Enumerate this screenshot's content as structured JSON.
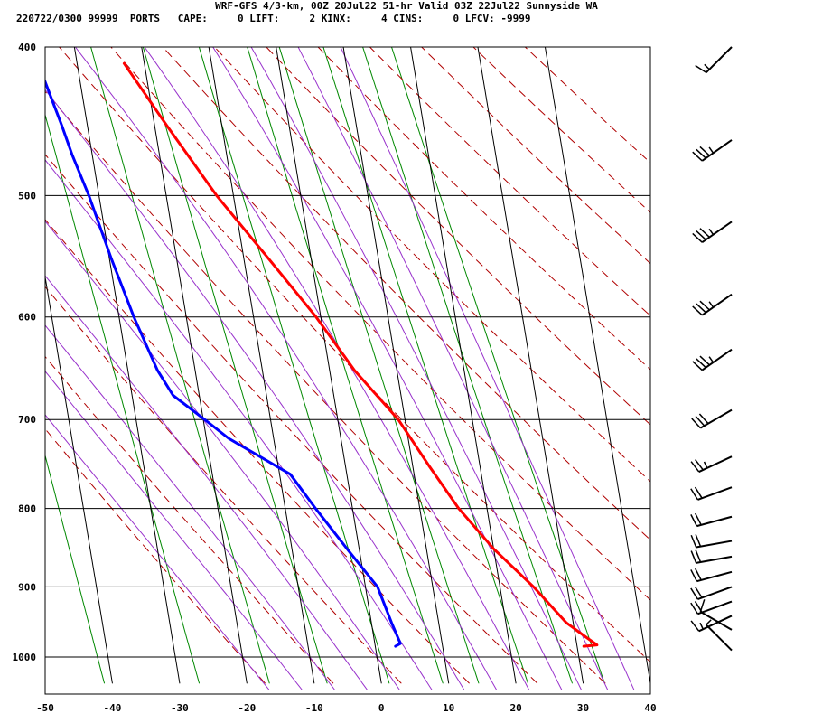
{
  "header": {
    "title": "WRF-GFS 4/3-km, 00Z 20Jul22 51-hr Valid 03Z 22Jul22 Sunnyside WA",
    "info": "220722/0300 99999  PORTS   CAPE:     0 LIFT:     2 KINX:     4 CINS:     0 LFCV: -9999"
  },
  "chart_data": {
    "type": "line",
    "subtype": "skew-T log-P sounding",
    "x_label": "",
    "y_label": "",
    "xlim": [
      -50,
      40
    ],
    "ylim": [
      1040,
      400
    ],
    "y_scale": "log",
    "x_ticks": [
      -50,
      -40,
      -30,
      -20,
      -10,
      0,
      10,
      20,
      30,
      40
    ],
    "x_tick_labels": [
      "-50",
      "-40",
      "-30",
      "-20",
      "-10",
      "0",
      "10",
      "20",
      "30",
      "40"
    ],
    "y_ticks": [
      400,
      500,
      600,
      700,
      800,
      900,
      1000
    ],
    "y_tick_labels": [
      "400",
      "500",
      "600",
      "700",
      "800",
      "900",
      "1000"
    ],
    "grid": true,
    "colors": {
      "temperature": "#ff0000",
      "dewpoint": "#0000ff",
      "dry_adiabat": "#b00000",
      "moist_adiabat": "#9933cc",
      "mixing_ratio": "#008800",
      "grid": "#000000"
    },
    "series": [
      {
        "id": "temperature",
        "points": [
          {
            "p": 984,
            "t": 31.0
          },
          {
            "p": 982,
            "t": 33.0
          },
          {
            "p": 970,
            "t": 31.5
          },
          {
            "p": 950,
            "t": 29.0
          },
          {
            "p": 900,
            "t": 25.0
          },
          {
            "p": 850,
            "t": 20.0
          },
          {
            "p": 800,
            "t": 15.8
          },
          {
            "p": 750,
            "t": 12.4
          },
          {
            "p": 700,
            "t": 9.0
          },
          {
            "p": 650,
            "t": 3.7
          },
          {
            "p": 600,
            "t": -0.7
          },
          {
            "p": 550,
            "t": -6.3
          },
          {
            "p": 500,
            "t": -12.5
          },
          {
            "p": 450,
            "t": -18.2
          },
          {
            "p": 410,
            "t": -23.0
          }
        ]
      },
      {
        "id": "dewpoint",
        "points": [
          {
            "p": 984,
            "t": 3.0
          },
          {
            "p": 980,
            "t": 3.8
          },
          {
            "p": 950,
            "t": 3.0
          },
          {
            "p": 900,
            "t": 1.8
          },
          {
            "p": 850,
            "t": -1.8
          },
          {
            "p": 800,
            "t": -5.5
          },
          {
            "p": 760,
            "t": -8.4
          },
          {
            "p": 720,
            "t": -16.7
          },
          {
            "p": 700,
            "t": -19.8
          },
          {
            "p": 675,
            "t": -23.9
          },
          {
            "p": 650,
            "t": -25.6
          },
          {
            "p": 600,
            "t": -27.8
          },
          {
            "p": 550,
            "t": -29.7
          },
          {
            "p": 500,
            "t": -31.5
          },
          {
            "p": 470,
            "t": -33.0
          },
          {
            "p": 450,
            "t": -33.8
          },
          {
            "p": 410,
            "t": -35.8
          }
        ]
      }
    ],
    "dry_adiabats_theta_K": [
      253,
      263,
      273,
      283,
      293,
      303,
      313,
      323,
      333,
      343,
      353,
      363,
      373,
      383,
      393,
      403
    ],
    "moist_adiabats_thetaw_C": [
      -20,
      -15,
      -10,
      -5,
      0,
      5,
      10,
      15,
      20,
      25,
      28,
      32,
      36
    ],
    "mixing_ratio_lines_gkg": [
      0.1,
      0.4,
      1,
      2,
      4,
      7,
      10,
      16,
      24,
      32
    ],
    "wind_barbs": [
      {
        "p": 400,
        "dir_deg": 225,
        "speed_kt": 15
      },
      {
        "p": 460,
        "dir_deg": 235,
        "speed_kt": 35
      },
      {
        "p": 520,
        "dir_deg": 235,
        "speed_kt": 35
      },
      {
        "p": 580,
        "dir_deg": 235,
        "speed_kt": 35
      },
      {
        "p": 630,
        "dir_deg": 235,
        "speed_kt": 35
      },
      {
        "p": 690,
        "dir_deg": 240,
        "speed_kt": 30
      },
      {
        "p": 740,
        "dir_deg": 245,
        "speed_kt": 25
      },
      {
        "p": 775,
        "dir_deg": 250,
        "speed_kt": 20
      },
      {
        "p": 810,
        "dir_deg": 255,
        "speed_kt": 20
      },
      {
        "p": 840,
        "dir_deg": 260,
        "speed_kt": 20
      },
      {
        "p": 860,
        "dir_deg": 260,
        "speed_kt": 20
      },
      {
        "p": 880,
        "dir_deg": 255,
        "speed_kt": 20
      },
      {
        "p": 900,
        "dir_deg": 250,
        "speed_kt": 20
      },
      {
        "p": 920,
        "dir_deg": 250,
        "speed_kt": 20
      },
      {
        "p": 940,
        "dir_deg": 245,
        "speed_kt": 15
      },
      {
        "p": 960,
        "dir_deg": 300,
        "speed_kt": 10
      },
      {
        "p": 990,
        "dir_deg": 315,
        "speed_kt": 5
      }
    ]
  }
}
